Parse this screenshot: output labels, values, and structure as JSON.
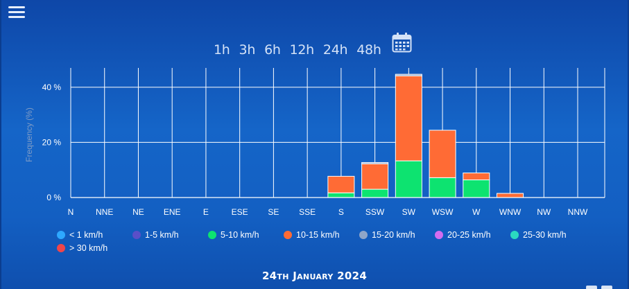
{
  "header": {
    "menu_icon": "hamburger-menu-icon",
    "ranges": [
      "1h",
      "3h",
      "6h",
      "12h",
      "24h",
      "48h"
    ],
    "calendar_icon": "calendar-icon"
  },
  "date_label": "24th January 2024",
  "chart_data": {
    "type": "bar",
    "stacked": true,
    "title": "",
    "xlabel": "",
    "ylabel": "Frequency (%)",
    "ylim": [
      0,
      47
    ],
    "yticks": [
      0,
      20,
      40
    ],
    "ytick_labels": [
      "0 %",
      "20 %",
      "40 %"
    ],
    "grid": true,
    "legend_position": "bottom-left",
    "categories": [
      "N",
      "NNE",
      "NE",
      "ENE",
      "E",
      "ESE",
      "SE",
      "SSE",
      "S",
      "SSW",
      "SW",
      "WSW",
      "W",
      "WNW",
      "NW",
      "NNW"
    ],
    "series": [
      {
        "name": "< 1 km/h",
        "color": "#2ea8ff",
        "values": [
          0,
          0,
          0,
          0,
          0,
          0,
          0,
          0,
          0,
          0,
          0,
          0,
          0,
          0,
          0,
          0
        ]
      },
      {
        "name": "1-5 km/h",
        "color": "#5a4fc8",
        "values": [
          0,
          0,
          0,
          0,
          0,
          0,
          0,
          0,
          0,
          0,
          0,
          0,
          0,
          0,
          0,
          0
        ]
      },
      {
        "name": "5-10 km/h",
        "color": "#0de370",
        "values": [
          0,
          0,
          0,
          0,
          0,
          0,
          0,
          0,
          1.7,
          3.0,
          13.3,
          7.2,
          6.4,
          0,
          0,
          0
        ]
      },
      {
        "name": "10-15 km/h",
        "color": "#ff6b35",
        "values": [
          0,
          0,
          0,
          0,
          0,
          0,
          0,
          0,
          6.0,
          9.2,
          30.8,
          17.2,
          2.5,
          1.5,
          0,
          0
        ]
      },
      {
        "name": "15-20 km/h",
        "color": "#8fa5c8",
        "values": [
          0,
          0,
          0,
          0,
          0,
          0,
          0,
          0,
          0,
          0.5,
          0.6,
          0,
          0,
          0,
          0,
          0
        ]
      },
      {
        "name": "20-25 km/h",
        "color": "#d36cf0",
        "values": [
          0,
          0,
          0,
          0,
          0,
          0,
          0,
          0,
          0,
          0,
          0,
          0,
          0,
          0,
          0,
          0
        ]
      },
      {
        "name": "25-30 km/h",
        "color": "#2bd9c0",
        "values": [
          0,
          0,
          0,
          0,
          0,
          0,
          0,
          0,
          0,
          0,
          0,
          0,
          0,
          0,
          0,
          0
        ]
      },
      {
        "name": "> 30 km/h",
        "color": "#f0454b",
        "values": [
          0,
          0,
          0,
          0,
          0,
          0,
          0,
          0,
          0,
          0,
          0,
          0,
          0,
          0,
          0,
          0
        ]
      }
    ]
  }
}
